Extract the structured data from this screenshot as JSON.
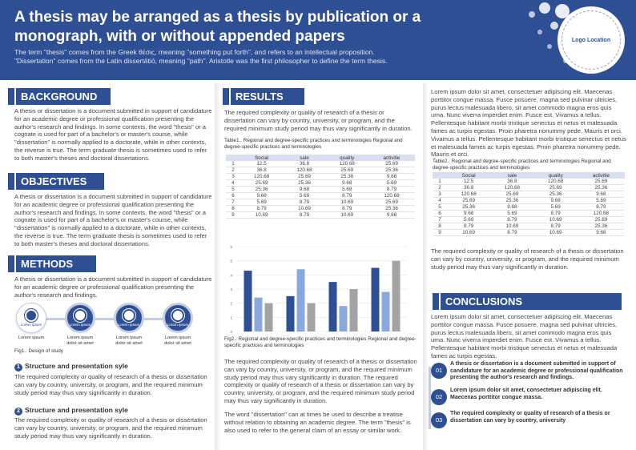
{
  "header": {
    "title": "A thesis may be arranged as a thesis by publication or a monograph, with or without appended papers",
    "intro_line1": "The term \"thesis\" comes from the Greek θέσις, meaning \"something put forth\", and refers to an intellectual proposition.",
    "intro_line2": "\"Dissertation\" comes from the Latin dissertātiō, meaning \"path\". Aristotle was the first philosopher to define the term thesis.",
    "logo_text": "Logo Location"
  },
  "colors": {
    "primary": "#2e4f93",
    "accent_light": "#8aa8e0",
    "accent_grey": "#a3a3a3"
  },
  "background": {
    "heading": "BACKGROUND",
    "text": "A thesis or dissertation is a document submitted in support of candidature for an academic degree or professional qualification presenting the author's research and findings. In some contexts, the word \"thesis\" or a cognate is used for part of a bachelor's or master's course, while \"dissertation\" is normally applied to a doctorate, while in other contexts, the reverse is true. The term graduate thesis is sometimes used to refer to both master's theses and doctoral dissertations."
  },
  "objectives": {
    "heading": "OBJECTIVES",
    "text": "A thesis or dissertation is a document submitted in support of candidature for an academic degree or professional qualification presenting the author's research and findings. In some contexts, the word \"thesis\" or a cognate is used for part of a bachelor's or master's course, while \"dissertation\" is normally applied to a doctorate, while in other contexts, the reverse is true. The term graduate thesis is sometimes used to refer to both master's theses and doctoral dissertations."
  },
  "methods": {
    "heading": "METHODS",
    "text": "A thesis or dissertation is a document submitted in support of candidature for an academic degree or professional qualification presenting the author's research and findings.",
    "icons": [
      {
        "icon": "pie-chart-icon",
        "label": "Lorem ipsum",
        "caption": "Lorem ipsum",
        "style": "light"
      },
      {
        "icon": "target-icon",
        "label": "Lorem ipsum",
        "caption": "Lorem ipsum dolor sit amet",
        "style": "dark"
      },
      {
        "icon": "target-icon",
        "label": "Lorem ipsum",
        "caption": "Lorem ipsum dolor sit amet",
        "style": "dark"
      },
      {
        "icon": "target-icon",
        "label": "Lorem ipsum",
        "caption": "Lorem ipsum dolor sit amet",
        "style": "dark"
      }
    ],
    "fig_caption": "Fig1.. Design of study",
    "sub1_num": "1",
    "sub1_heading": "Structure and presentation syle",
    "sub1_text": "The required complexity or quality of research of a thesis or dissertation can vary by country, university, or program, and the required minimum study period may thus vary significantly in duration.",
    "sub2_num": "2",
    "sub2_heading": "Structure and presentation syle",
    "sub2_text": "The required complexity or quality of research of a thesis or dissertation can vary by country, university, or program, and the required minimum study period may thus vary significantly in duration."
  },
  "results": {
    "heading": "RESULTS",
    "intro": "The required complexity or quality of research of a thesis or dissertation can vary by country, university, or program, and the required minimum study period may thus vary significantly in duration.",
    "table1_caption": "Table1.. Regional and degree-specific practices and terminologies Regional and degree-specific practices and terminologies",
    "fig2_caption": "Fig2.. Regional and degree-specific practices and terminologies Regional and degree-specific practices and terminologies",
    "text2": "The required complexity or quality of research of a thesis or dissertation can vary by country, university, or program, and the required minimum study period may thus vary significantly in duration. The required complexity or quality of research of a thesis or dissertation can vary by country, university, or program, and the required minimum study period may thus vary significantly in duration.",
    "text3": "The word \"dissertation\" can at times be used to describe a treatise without relation to obtaining an academic degree. The term \"thesis\" is also used to refer to the general claim of an essay or similar work."
  },
  "table1": {
    "headers": [
      "",
      "Social",
      "sale",
      "quality",
      "activitie"
    ],
    "rows": [
      [
        "1",
        "12.5",
        "36.8",
        "120.68",
        "25.69"
      ],
      [
        "2",
        "36.8",
        "120.68",
        "25.69",
        "25.36"
      ],
      [
        "3",
        "120.68",
        "25.69",
        "25.36",
        "9.68"
      ],
      [
        "4",
        "25.69",
        "25.36",
        "9.68",
        "5.69"
      ],
      [
        "5",
        "25.36",
        "9.68",
        "5.69",
        "8.79"
      ],
      [
        "6",
        "9.68",
        "5.69",
        "8.79",
        "120.68"
      ],
      [
        "7",
        "5.69",
        "8.79",
        "10.69",
        "25.69"
      ],
      [
        "8",
        "8.79",
        "10.69",
        "8.79",
        "25.36"
      ],
      [
        "9",
        "10.69",
        "8.79",
        "10.69",
        "9.68"
      ]
    ]
  },
  "right": {
    "lorem1": "Lorem ipsum dolor sit amet, consectetuer adipiscing elit. Maecenas porttitor congue massa. Fusce posuere, magna sed pulvinar ultricies, purus lectus malesuada libero, sit amet commodo magna eros quis urna. Nunc viverra imperdiet enim. Fusce est. Vivamus a tellus. Pellentesque habitant morbi tristique senectus et netus et malesuada fames ac turpis egestas. Proin pharetra nonummy pede. Mauris et orci. Vivamus a tellus. Pellentesque habitant morbi tristique senectus et netus et malesuada fames ac turpis egestas. Proin pharetra nonummy pede. Mauris et orci.",
    "table2_caption": "Table2.. Regional and degree-specific practices and terminologies Regional and degree-specific practices and terminologies",
    "after_table": "The required complexity or quality of research of a thesis or dissertation can vary by country, university, or program, and the required minimum study period may thus vary significantly in duration."
  },
  "table2": {
    "headers": [
      "",
      "Social",
      "sale",
      "quality",
      "activitie"
    ],
    "rows": [
      [
        "1",
        "12.5",
        "36.8",
        "120.68",
        "25.69"
      ],
      [
        "2",
        "36.8",
        "120.68",
        "25.69",
        "25.36"
      ],
      [
        "3",
        "120.68",
        "25.69",
        "25.36",
        "9.68"
      ],
      [
        "4",
        "25.69",
        "25.36",
        "9.68",
        "5.69"
      ],
      [
        "5",
        "25.36",
        "9.68",
        "5.69",
        "8.79"
      ],
      [
        "6",
        "9.68",
        "5.69",
        "8.79",
        "120.68"
      ],
      [
        "7",
        "5.69",
        "8.79",
        "10.69",
        "25.69"
      ],
      [
        "8",
        "8.79",
        "10.69",
        "8.79",
        "25.36"
      ],
      [
        "9",
        "10.69",
        "8.79",
        "10.69",
        "9.68"
      ]
    ]
  },
  "conclusions": {
    "heading": "CONCLUSIONS",
    "text": "Lorem ipsum dolor sit amet, consectetuer adipiscing elit. Maecenas porttitor congue massa. Fusce posuere, magna sed pulvinar ultricies, purus lectus malesuada libero, sit amet commodo magna eros quis urna. Nunc viverra imperdiet enim. Fusce est. Vivamus a tellus. Pellentesque habitant morbi tristique senectus et netus et malesuada fames ac turpis egestas.",
    "items": [
      {
        "num": "01",
        "text": "A thesis or dissertation is a document submitted in support of candidature for an academic degree or professional qualification presenting the author's research and findings."
      },
      {
        "num": "02",
        "text": "Lorem ipsum dolor sit amet, consectetuer adipiscing elit. Maecenas porttitor congue massa."
      },
      {
        "num": "03",
        "text": "The required complexity or quality of research of a thesis or dissertation can vary by country, university"
      }
    ]
  },
  "chart_data": {
    "type": "bar",
    "categories": [
      "",
      "",
      "",
      ""
    ],
    "series": [
      {
        "values": [
          4.3,
          2.5,
          3.5,
          4.5
        ],
        "color": "#2e4f93"
      },
      {
        "values": [
          2.4,
          4.4,
          1.8,
          2.8
        ],
        "color": "#8aa8e0"
      },
      {
        "values": [
          2.0,
          2.0,
          3.0,
          5.0
        ],
        "color": "#a3a3a3"
      }
    ],
    "y_ticks": [
      "0",
      "1",
      "2",
      "3",
      "4",
      "5",
      "6"
    ],
    "ylim": [
      0,
      6
    ],
    "grid": true,
    "legend": "none"
  }
}
